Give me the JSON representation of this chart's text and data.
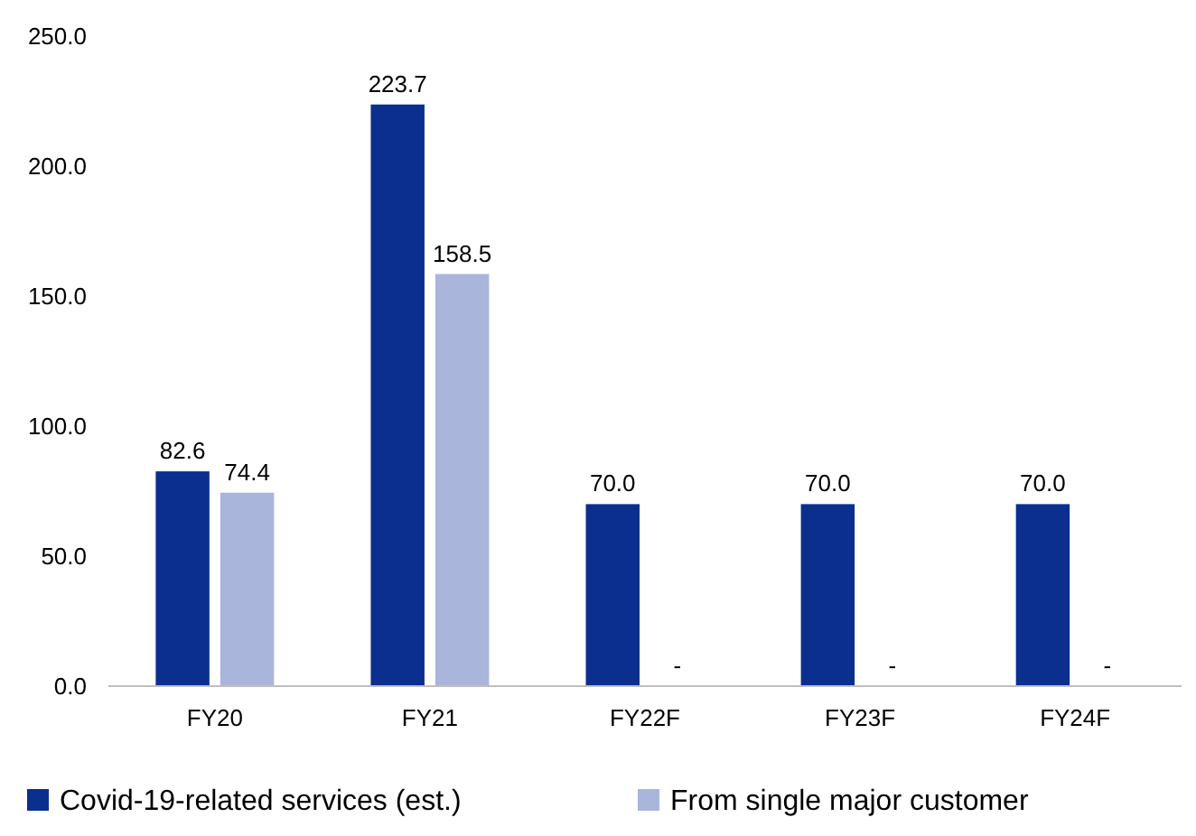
{
  "chart_data": {
    "type": "bar",
    "categories": [
      "FY20",
      "FY21",
      "FY22F",
      "FY23F",
      "FY24F"
    ],
    "series": [
      {
        "name": "Covid-19-related services (est.)",
        "color": "#0b2f8e",
        "values": [
          82.6,
          223.7,
          70.0,
          70.0,
          70.0
        ],
        "value_labels": [
          "82.6",
          "223.7",
          "70.0",
          "70.0",
          "70.0"
        ]
      },
      {
        "name": "From single major customer",
        "color": "#a9b5da",
        "values": [
          74.4,
          158.5,
          null,
          null,
          null
        ],
        "value_labels": [
          "74.4",
          "158.5",
          null,
          null,
          null
        ]
      }
    ],
    "annotations": [
      {
        "text": "-",
        "x": "FY22F",
        "y": 0
      },
      {
        "text": "-",
        "x": "FY23F",
        "y": 0
      },
      {
        "text": "-",
        "x": "FY24F",
        "y": 0
      }
    ],
    "ylim": [
      0,
      250
    ],
    "yticks": [
      {
        "value": 0,
        "label": "0.0"
      },
      {
        "value": 50,
        "label": "50.0"
      },
      {
        "value": 100,
        "label": "100.0"
      },
      {
        "value": 150,
        "label": "150.0"
      },
      {
        "value": 200,
        "label": "200.0"
      },
      {
        "value": 250,
        "label": "250.0"
      }
    ],
    "grid": false,
    "legend": "bottom"
  }
}
